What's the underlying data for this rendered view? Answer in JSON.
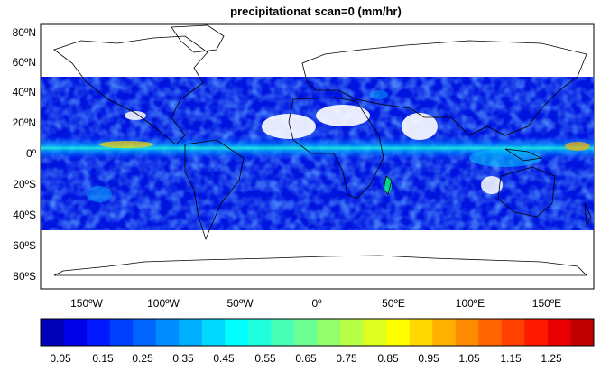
{
  "title": "precipitationat scan=0 (mm/hr)",
  "map": {
    "lat_labels": [
      "80ºN",
      "60ºN",
      "40ºN",
      "20ºN",
      "0º",
      "20ºS",
      "40ºS",
      "60ºS",
      "80ºS"
    ],
    "lat_values": [
      80,
      60,
      40,
      20,
      0,
      -20,
      -40,
      -60,
      -80
    ],
    "lon_labels": [
      "150ºW",
      "100ºW",
      "50ºW",
      "0º",
      "50ºE",
      "100ºE",
      "150ºE"
    ],
    "lon_values": [
      -150,
      -100,
      -50,
      0,
      50,
      100,
      150
    ],
    "lon_range": [
      -180,
      180
    ],
    "lat_range": [
      -90,
      90
    ],
    "data_lat_range": [
      -50,
      50
    ],
    "no_data_color": "#ffffff",
    "coastline_color": "#000000"
  },
  "colorbar": {
    "labels": [
      "0.05",
      "0.15",
      "0.25",
      "0.35",
      "0.45",
      "0.55",
      "0.65",
      "0.75",
      "0.85",
      "0.95",
      "1.05",
      "1.15",
      "1.25"
    ],
    "colors": [
      "#0000b8",
      "#0000e8",
      "#0018ff",
      "#0040ff",
      "#0064ff",
      "#008cff",
      "#00b0ff",
      "#00d8ff",
      "#00ffff",
      "#20ffdc",
      "#48ffb8",
      "#6cff94",
      "#94ff6c",
      "#b8ff48",
      "#dcff20",
      "#ffff00",
      "#ffd800",
      "#ffb000",
      "#ff8c00",
      "#ff6400",
      "#ff4000",
      "#ff1800",
      "#e80000",
      "#c00000"
    ]
  }
}
